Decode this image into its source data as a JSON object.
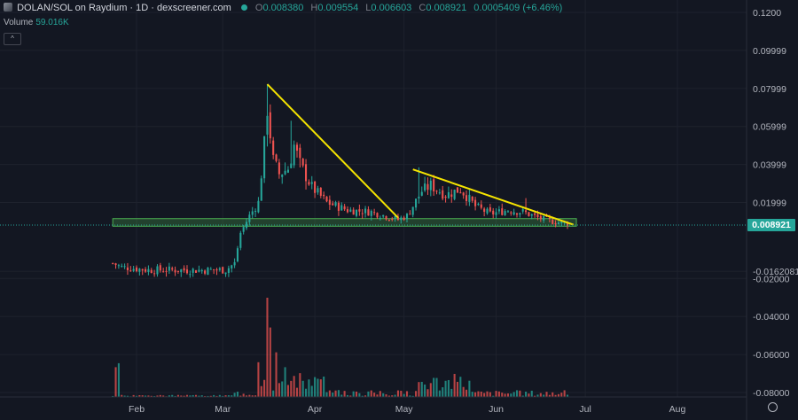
{
  "header": {
    "pair": "DOLAN/SOL on Raydium · 1D · dexscreener.com",
    "ohlc": [
      {
        "k": "O",
        "v": "0.008380"
      },
      {
        "k": "H",
        "v": "0.009554"
      },
      {
        "k": "L",
        "v": "0.006603"
      },
      {
        "k": "C",
        "v": "0.008921"
      },
      {
        "k": "",
        "v": "0.0005409 (+6.46%)"
      }
    ],
    "volume_label": "Volume",
    "volume_value": "59.016K",
    "collapse_glyph": "^"
  },
  "price_tag": "0.008921",
  "settings_icon": "gear-icon",
  "colors": {
    "up": "#26a69a",
    "down": "#ef5350",
    "trendline": "#f5e400",
    "zone": "#4caf50",
    "background": "#131722"
  },
  "chart_data": {
    "type": "candlestick",
    "symbol": "DOLAN/SOL",
    "timeframe": "1D",
    "y_axis_ticks": [
      "0.1200",
      "0.09999",
      "0.07999",
      "0.05999",
      "0.03999",
      "0.01999",
      "-0.0162081",
      "-0.02000",
      "-0.04000",
      "-0.06000",
      "-0.08000"
    ],
    "y_tick_values": [
      0.12,
      0.09999,
      0.07999,
      0.05999,
      0.03999,
      0.01999,
      -0.0162081,
      -0.02,
      -0.04,
      -0.06,
      -0.08
    ],
    "x_axis_ticks": [
      "Feb",
      "Mar",
      "Apr",
      "May",
      "Jun",
      "Jul",
      "Aug"
    ],
    "x_tick_dates": [
      "2024-02-01",
      "2024-03-01",
      "2024-04-01",
      "2024-05-01",
      "2024-06-01",
      "2024-07-01",
      "2024-08-01"
    ],
    "last_price": 0.008921,
    "close_anchors": [
      [
        "2024-01-24",
        -0.012
      ],
      [
        "2024-01-27",
        -0.014
      ],
      [
        "2024-02-05",
        -0.0155
      ],
      [
        "2024-02-20",
        -0.0156
      ],
      [
        "2024-03-02",
        -0.0155
      ],
      [
        "2024-03-05",
        -0.012
      ],
      [
        "2024-03-07",
        0.004
      ],
      [
        "2024-03-10",
        0.013
      ],
      [
        "2024-03-13",
        0.02
      ],
      [
        "2024-03-15",
        0.05
      ],
      [
        "2024-03-16",
        0.07
      ],
      [
        "2024-03-18",
        0.042
      ],
      [
        "2024-03-20",
        0.035
      ],
      [
        "2024-03-23",
        0.038
      ],
      [
        "2024-03-25",
        0.05
      ],
      [
        "2024-03-27",
        0.04
      ],
      [
        "2024-03-31",
        0.028
      ],
      [
        "2024-04-05",
        0.02
      ],
      [
        "2024-04-12",
        0.016
      ],
      [
        "2024-04-20",
        0.015
      ],
      [
        "2024-04-29",
        0.011
      ],
      [
        "2024-05-02",
        0.013
      ],
      [
        "2024-05-07",
        0.026
      ],
      [
        "2024-05-10",
        0.029
      ],
      [
        "2024-05-15",
        0.024
      ],
      [
        "2024-05-20",
        0.027
      ],
      [
        "2024-05-25",
        0.018
      ],
      [
        "2024-05-30",
        0.014
      ],
      [
        "2024-06-05",
        0.016
      ],
      [
        "2024-06-10",
        0.015
      ],
      [
        "2024-06-15",
        0.012
      ],
      [
        "2024-06-20",
        0.01
      ],
      [
        "2024-06-25",
        0.0089
      ]
    ],
    "highs": [
      [
        "2024-03-16",
        0.0822
      ],
      [
        "2024-03-24",
        0.063
      ],
      [
        "2024-05-06",
        0.0385
      ],
      [
        "2024-06-11",
        0.0223
      ]
    ],
    "volume_peaks": [
      [
        "2024-01-25",
        30
      ],
      [
        "2024-01-26",
        34
      ],
      [
        "2024-03-13",
        35
      ],
      [
        "2024-03-16",
        100
      ],
      [
        "2024-03-17",
        70
      ],
      [
        "2024-03-19",
        45
      ],
      [
        "2024-03-22",
        30
      ],
      [
        "2024-04-01",
        20
      ],
      [
        "2024-05-06",
        15
      ]
    ],
    "annotations": [
      {
        "type": "trendline",
        "from": [
          "2024-03-16",
          0.0822
        ],
        "to": [
          "2024-04-29",
          0.012
        ]
      },
      {
        "type": "trendline",
        "from": [
          "2024-05-04",
          0.0374
        ],
        "to": [
          "2024-06-27",
          0.0083
        ]
      },
      {
        "type": "zone",
        "from_date": "2024-01-24",
        "to_date": "2024-06-28",
        "y_top": 0.0115,
        "y_bottom": 0.0075
      }
    ]
  }
}
